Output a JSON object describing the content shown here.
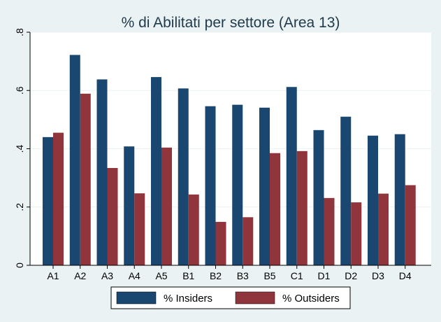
{
  "chart_data": {
    "type": "bar",
    "title": "% di Abilitati per settore (Area 13)",
    "xlabel": "",
    "ylabel": "",
    "categories": [
      "A1",
      "A2",
      "A3",
      "A4",
      "A5",
      "B1",
      "B2",
      "B3",
      "B5",
      "C1",
      "D1",
      "D2",
      "D3",
      "D4"
    ],
    "series": [
      {
        "name": "% Insiders",
        "color": "#1a476f",
        "values": [
          0.44,
          0.722,
          0.638,
          0.408,
          0.646,
          0.607,
          0.546,
          0.551,
          0.541,
          0.612,
          0.464,
          0.51,
          0.445,
          0.45
        ]
      },
      {
        "name": "% Outsiders",
        "color": "#90353b",
        "values": [
          0.455,
          0.589,
          0.334,
          0.247,
          0.404,
          0.243,
          0.149,
          0.165,
          0.385,
          0.392,
          0.231,
          0.216,
          0.246,
          0.275
        ]
      }
    ],
    "ylim": [
      0,
      0.8
    ],
    "yticks": [
      0,
      0.2,
      0.4,
      0.6,
      0.8
    ],
    "ytick_labels": [
      "0",
      ".2",
      ".4",
      ".6",
      ".8"
    ],
    "grid": true,
    "legend_position": "bottom"
  },
  "colors": {
    "outer_background": "#eaf2f3",
    "plot_background": "#ffffff",
    "gridline": "#eaf2f3",
    "title_text": "#1e3a4c"
  }
}
